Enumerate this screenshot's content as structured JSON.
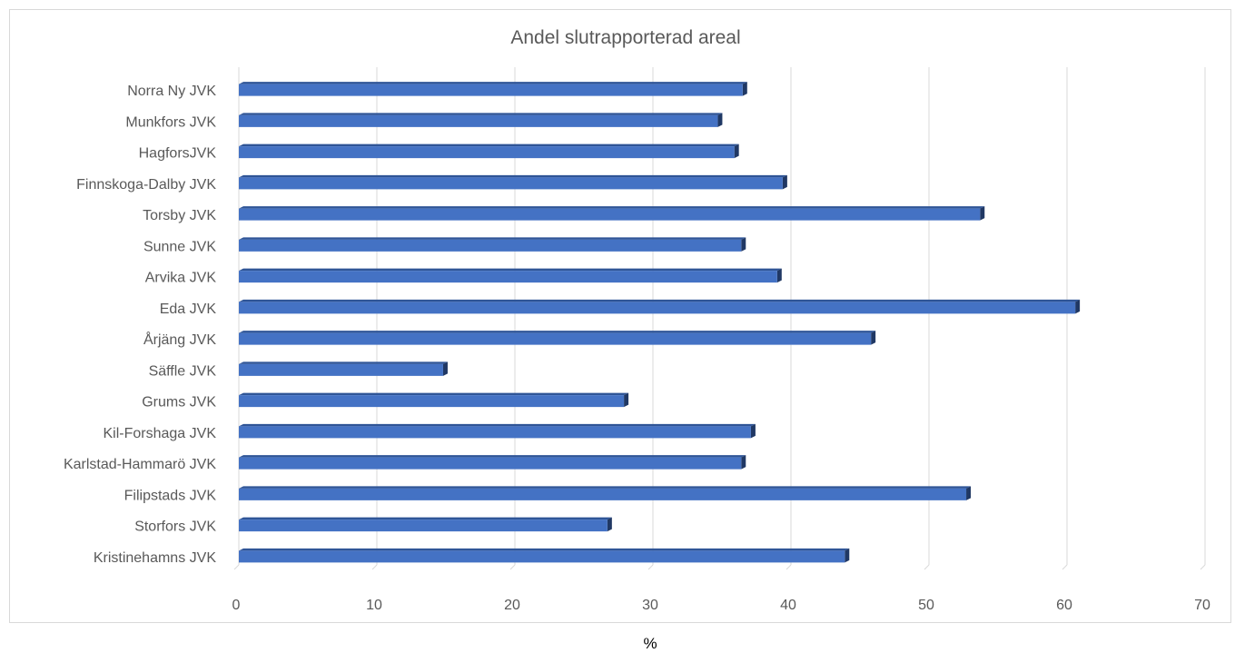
{
  "chart_data": {
    "type": "bar",
    "orientation": "horizontal",
    "title": "Andel slutrapporterad areal",
    "xlabel": "%",
    "ylabel": "",
    "categories": [
      "Norra Ny JVK",
      "Munkfors JVK",
      "HagforsJVK",
      "Finnskoga-Dalby JVK",
      "Torsby JVK",
      "Sunne JVK",
      "Arvika JVK",
      "Eda JVK",
      "Årjäng JVK",
      "Säffle JVK",
      "Grums JVK",
      "Kil-Forshaga JVK",
      "Karlstad-Hammarö JVK",
      "Filipstads JVK",
      "Storfors JVK",
      "Kristinehamns JVK"
    ],
    "values": [
      36.5,
      34.7,
      35.9,
      39.4,
      53.7,
      36.4,
      39.0,
      60.6,
      45.8,
      14.8,
      27.9,
      37.1,
      36.4,
      52.7,
      26.7,
      43.9
    ],
    "xlim": [
      0,
      70
    ],
    "xticks": [
      "0",
      "10",
      "20",
      "30",
      "40",
      "50",
      "60",
      "70"
    ],
    "grid": true,
    "legend": "none",
    "colors": {
      "bar_face": "#4472c4",
      "bar_top": "#2f5597",
      "bar_side": "#203864",
      "grid": "#d9d9d9",
      "text": "#595959"
    }
  }
}
